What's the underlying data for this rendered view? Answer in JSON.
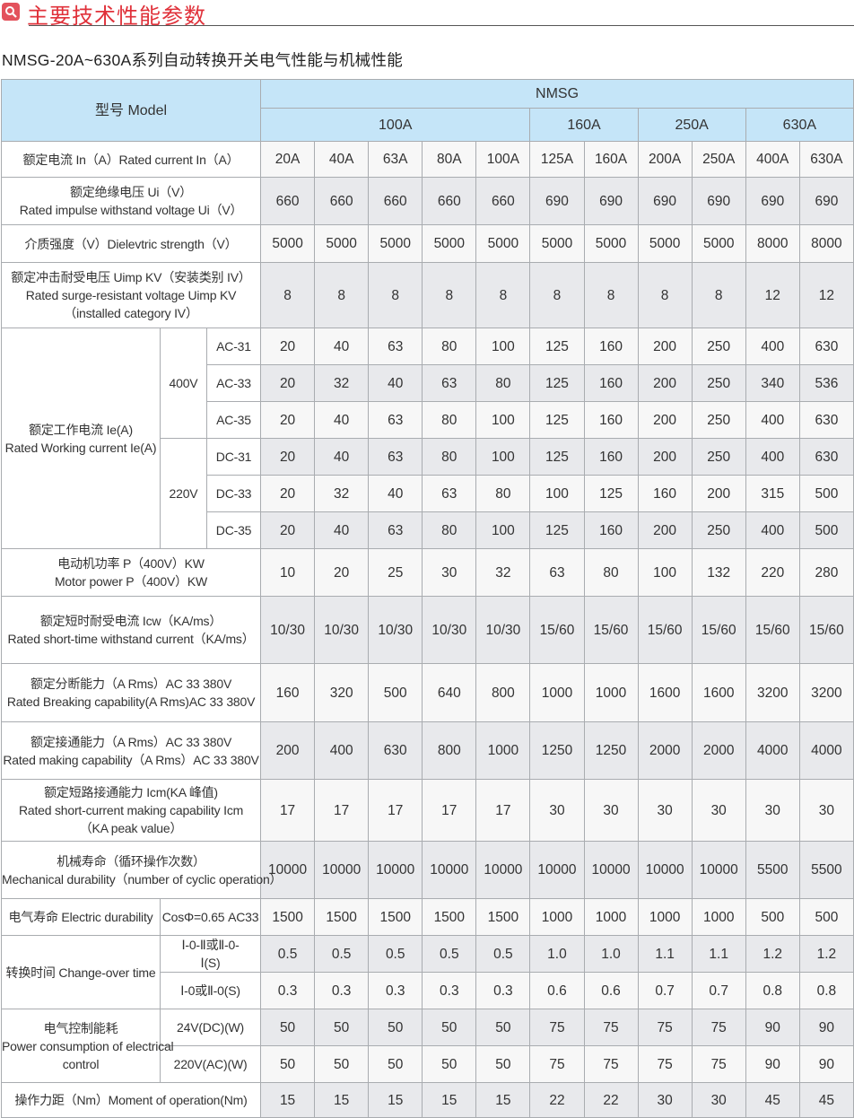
{
  "header": {
    "title": "主要技术性能参数",
    "icon": "search-icon",
    "accent_color": "#e0313a",
    "subtitle": "NMSG-20A~630A系列自动转换开关电气性能与机械性能"
  },
  "table": {
    "model_label": "型号 Model",
    "series": "NMSG",
    "frames": [
      {
        "label": "100A",
        "span": 5
      },
      {
        "label": "160A",
        "span": 2
      },
      {
        "label": "250A",
        "span": 2
      },
      {
        "label": "630A",
        "span": 2
      }
    ],
    "header_color": "#c5e5f8",
    "rows_top": [
      {
        "label": [
          "额定电流 In（A）Rated current In（A）"
        ],
        "values": [
          "20A",
          "40A",
          "63A",
          "80A",
          "100A",
          "125A",
          "160A",
          "200A",
          "250A",
          "400A",
          "630A"
        ]
      },
      {
        "label": [
          "额定绝缘电压 Ui（V）",
          "Rated impulse withstand voltage Ui（V）"
        ],
        "values": [
          "660",
          "660",
          "660",
          "660",
          "660",
          "690",
          "690",
          "690",
          "690",
          "690",
          "690"
        ]
      },
      {
        "label": [
          "介质强度（V）Dielevtric strength（V）"
        ],
        "values": [
          "5000",
          "5000",
          "5000",
          "5000",
          "5000",
          "5000",
          "5000",
          "5000",
          "5000",
          "8000",
          "8000"
        ]
      },
      {
        "label": [
          "额定冲击耐受电压 Uimp KV（安装类别 IV）",
          "Rated surge-resistant voltage Uimp KV",
          "（installed category IV）"
        ],
        "values": [
          "8",
          "8",
          "8",
          "8",
          "8",
          "8",
          "8",
          "8",
          "8",
          "12",
          "12"
        ]
      }
    ],
    "working_current": {
      "label": [
        "额定工作电流 Ie(A)",
        "Rated Working current Ie(A)"
      ],
      "groups": [
        {
          "voltage": "400V",
          "rows": [
            {
              "category": "AC-31",
              "values": [
                "20",
                "40",
                "63",
                "80",
                "100",
                "125",
                "160",
                "200",
                "250",
                "400",
                "630"
              ]
            },
            {
              "category": "AC-33",
              "values": [
                "20",
                "32",
                "40",
                "63",
                "80",
                "125",
                "160",
                "200",
                "250",
                "340",
                "536"
              ]
            },
            {
              "category": "AC-35",
              "values": [
                "20",
                "40",
                "63",
                "80",
                "100",
                "125",
                "160",
                "200",
                "250",
                "400",
                "630"
              ]
            }
          ]
        },
        {
          "voltage": "220V",
          "rows": [
            {
              "category": "DC-31",
              "values": [
                "20",
                "40",
                "63",
                "80",
                "100",
                "125",
                "160",
                "200",
                "250",
                "400",
                "630"
              ]
            },
            {
              "category": "DC-33",
              "values": [
                "20",
                "32",
                "40",
                "63",
                "80",
                "100",
                "125",
                "160",
                "200",
                "315",
                "500"
              ]
            },
            {
              "category": "DC-35",
              "values": [
                "20",
                "40",
                "63",
                "80",
                "100",
                "125",
                "160",
                "200",
                "250",
                "400",
                "500"
              ]
            }
          ]
        }
      ]
    },
    "rows_mid": [
      {
        "label": [
          "电动机功率 P（400V）KW",
          "Motor power P（400V）KW"
        ],
        "values": [
          "10",
          "20",
          "25",
          "30",
          "32",
          "63",
          "80",
          "100",
          "132",
          "220",
          "280"
        ]
      },
      {
        "label": [
          "额定短时耐受电流 Icw（KA/ms）",
          "Rated short-time withstand current（KA/ms）"
        ],
        "values": [
          "10/30",
          "10/30",
          "10/30",
          "10/30",
          "10/30",
          "15/60",
          "15/60",
          "15/60",
          "15/60",
          "15/60",
          "15/60"
        ]
      },
      {
        "label": [
          "额定分断能力（A Rms）AC 33 380V",
          "Rated Breaking capability(A Rms)AC 33 380V"
        ],
        "values": [
          "160",
          "320",
          "500",
          "640",
          "800",
          "1000",
          "1000",
          "1600",
          "1600",
          "3200",
          "3200"
        ]
      },
      {
        "label": [
          "额定接通能力（A Rms）AC 33 380V",
          "Rated making capability（A Rms）AC 33 380V"
        ],
        "values": [
          "200",
          "400",
          "630",
          "800",
          "1000",
          "1250",
          "1250",
          "2000",
          "2000",
          "4000",
          "4000"
        ]
      },
      {
        "label": [
          "额定短路接通能力 Icm(KA 峰值)",
          "Rated short-current making capability Icm",
          "（KA peak value）"
        ],
        "values": [
          "17",
          "17",
          "17",
          "17",
          "17",
          "30",
          "30",
          "30",
          "30",
          "30",
          "30"
        ]
      },
      {
        "label": [
          "机械寿命（循环操作次数）",
          "Mechanical durability（number of cyclic operation）"
        ],
        "values": [
          "10000",
          "10000",
          "10000",
          "10000",
          "10000",
          "10000",
          "10000",
          "10000",
          "10000",
          "5500",
          "5500"
        ]
      }
    ],
    "rows_sub": [
      {
        "label": [
          "电气寿命 Electric durability"
        ],
        "subs": [
          {
            "sub": [
              "CosΦ=0.65 AC33"
            ],
            "values": [
              "1500",
              "1500",
              "1500",
              "1500",
              "1500",
              "1000",
              "1000",
              "1000",
              "1000",
              "500",
              "500"
            ]
          }
        ]
      },
      {
        "label": [
          "转换时间 Change-over time"
        ],
        "subs": [
          {
            "sub": [
              "Ⅰ-0-Ⅱ或Ⅱ-0-",
              "Ⅰ(S)"
            ],
            "values": [
              "0.5",
              "0.5",
              "0.5",
              "0.5",
              "0.5",
              "1.0",
              "1.0",
              "1.1",
              "1.1",
              "1.2",
              "1.2"
            ]
          },
          {
            "sub": [
              "Ⅰ-0或Ⅱ-0(S)"
            ],
            "values": [
              "0.3",
              "0.3",
              "0.3",
              "0.3",
              "0.3",
              "0.6",
              "0.6",
              "0.7",
              "0.7",
              "0.8",
              "0.8"
            ]
          }
        ]
      },
      {
        "label": [
          "电气控制能耗",
          "Power consumption of electrical",
          "control"
        ],
        "subs": [
          {
            "sub": [
              "24V(DC)(W)"
            ],
            "values": [
              "50",
              "50",
              "50",
              "50",
              "50",
              "75",
              "75",
              "75",
              "75",
              "90",
              "90"
            ]
          },
          {
            "sub": [
              "220V(AC)(W)"
            ],
            "values": [
              "50",
              "50",
              "50",
              "50",
              "50",
              "75",
              "75",
              "75",
              "75",
              "90",
              "90"
            ]
          }
        ]
      }
    ],
    "rows_bottom": [
      {
        "label": [
          "操作力距（Nm）Moment of operation(Nm)"
        ],
        "values": [
          "15",
          "15",
          "15",
          "15",
          "15",
          "22",
          "22",
          "30",
          "30",
          "45",
          "45"
        ]
      }
    ]
  }
}
